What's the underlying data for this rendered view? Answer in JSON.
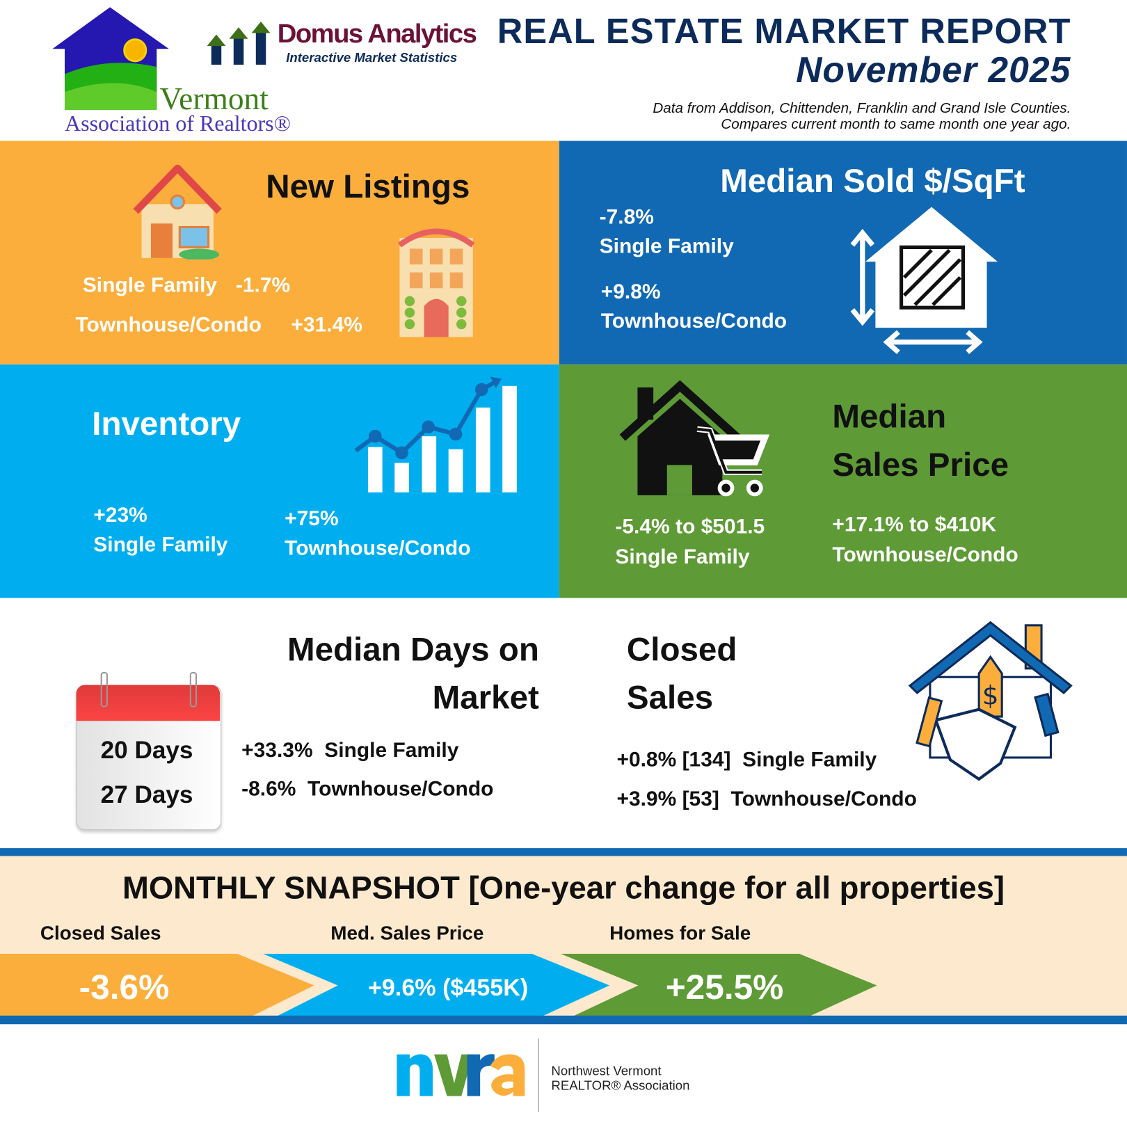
{
  "header": {
    "title": "REAL ESTATE MARKET REPORT",
    "month": "November 2025",
    "note_line1": "Data from Addison, Chittenden, Franklin and Grand Isle Counties.",
    "note_line2": "Compares current month to same month one year ago.",
    "logo_var_line1": "Vermont",
    "logo_var_line2": "Association of Realtors®",
    "logo_domus_name": "Domus Analytics",
    "logo_domus_tagline": "Interactive Market Statistics"
  },
  "colors": {
    "orange": "#FBAE3C",
    "blue": "#1169B3",
    "cyan": "#00AEEF",
    "green": "#5E9A36",
    "navy": "#0D2B5A",
    "beige": "#FDE9CD"
  },
  "new_listings": {
    "title": "New Listings",
    "sf_label": "Single Family",
    "sf_value": "-1.7%",
    "tc_label": "Townhouse/Condo",
    "tc_value": "+31.4%"
  },
  "median_sqft": {
    "title": "Median Sold $/SqFt",
    "sf_value": "-7.8%",
    "sf_label": "Single Family",
    "tc_value": "+9.8%",
    "tc_label": "Townhouse/Condo"
  },
  "inventory": {
    "title": "Inventory",
    "sf_value": "+23%",
    "sf_label": "Single Family",
    "tc_value": "+75%",
    "tc_label": "Townhouse/Condo"
  },
  "median_price": {
    "title_line1": "Median",
    "title_line2": "Sales Price",
    "sf_value": "-5.4% to $501.5",
    "sf_label": "Single Family",
    "tc_value": "+17.1% to $410K",
    "tc_label": "Townhouse/Condo"
  },
  "days_on_market": {
    "title_line1": "Median Days on",
    "title_line2": "Market",
    "sf_days": "20 Days",
    "tc_days": "27 Days",
    "sf_line": "+33.3%  Single Family",
    "tc_line": "-8.6%  Townhouse/Condo"
  },
  "closed_sales": {
    "title_line1": "Closed",
    "title_line2": "Sales",
    "sf_line": "+0.8% [134]  Single Family",
    "tc_line": "+3.9% [53]  Townhouse/Condo"
  },
  "snapshot": {
    "title": "MONTHLY SNAPSHOT [One-year change for all properties]",
    "items": [
      {
        "label": "Closed Sales",
        "value": "-3.6%"
      },
      {
        "label": "Med. Sales Price",
        "value": "+9.6% ($455K)"
      },
      {
        "label": "Homes for Sale",
        "value": "+25.5%"
      }
    ]
  },
  "footer": {
    "logo_text": "nvra",
    "org_line1": "Northwest Vermont",
    "org_line2": "REALTOR® Association"
  }
}
